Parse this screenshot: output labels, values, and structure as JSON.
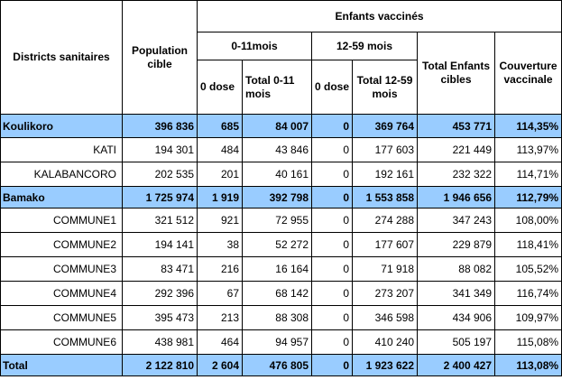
{
  "header": {
    "districts": "Districts sanitaires",
    "population": "Population cible",
    "enfants_vaccines": "Enfants vaccinés",
    "group_0_11": "0-11mois",
    "group_12_59": "12-59 mois",
    "zero_dose_a": "0 dose",
    "total_0_11": "Total 0-11 mois",
    "zero_dose_b": "0 dose",
    "total_12_59": "Total 12-59 mois",
    "total_enfants": "Total Enfants cibles",
    "couverture": "Couverture vaccinale"
  },
  "rows": [
    {
      "name": "Koulikoro",
      "population": "396 836",
      "zero_0_11": "685",
      "total_0_11": "84 007",
      "zero_12_59": "0",
      "total_12_59": "369 764",
      "total_enfants": "453 771",
      "couverture": "114,35%"
    },
    {
      "name": "KATI",
      "population": "194 301",
      "zero_0_11": "484",
      "total_0_11": "43 846",
      "zero_12_59": "0",
      "total_12_59": "177 603",
      "total_enfants": "221 449",
      "couverture": "113,97%"
    },
    {
      "name": "KALABANCORO",
      "population": "202 535",
      "zero_0_11": "201",
      "total_0_11": "40 161",
      "zero_12_59": "0",
      "total_12_59": "192 161",
      "total_enfants": "232 322",
      "couverture": "114,71%"
    },
    {
      "name": "Bamako",
      "population": "1 725 974",
      "zero_0_11": "1 919",
      "total_0_11": "392 798",
      "zero_12_59": "0",
      "total_12_59": "1 553 858",
      "total_enfants": "1 946 656",
      "couverture": "112,79%"
    },
    {
      "name": "COMMUNE1",
      "population": "321 512",
      "zero_0_11": "921",
      "total_0_11": "72 955",
      "zero_12_59": "0",
      "total_12_59": "274 288",
      "total_enfants": "347 243",
      "couverture": "108,00%"
    },
    {
      "name": "COMMUNE2",
      "population": "194 141",
      "zero_0_11": "38",
      "total_0_11": "52 272",
      "zero_12_59": "0",
      "total_12_59": "177 607",
      "total_enfants": "229 879",
      "couverture": "118,41%"
    },
    {
      "name": "COMMUNE3",
      "population": "83 471",
      "zero_0_11": "216",
      "total_0_11": "16 164",
      "zero_12_59": "0",
      "total_12_59": "71 918",
      "total_enfants": "88 082",
      "couverture": "105,52%"
    },
    {
      "name": "COMMUNE4",
      "population": "292 396",
      "zero_0_11": "67",
      "total_0_11": "68 142",
      "zero_12_59": "0",
      "total_12_59": "273 207",
      "total_enfants": "341 349",
      "couverture": "116,74%"
    },
    {
      "name": "COMMUNE5",
      "population": "395 473",
      "zero_0_11": "213",
      "total_0_11": "88 308",
      "zero_12_59": "0",
      "total_12_59": "346 598",
      "total_enfants": "434 906",
      "couverture": "109,97%"
    },
    {
      "name": "COMMUNE6",
      "population": "438 981",
      "zero_0_11": "464",
      "total_0_11": "94 957",
      "zero_12_59": "0",
      "total_12_59": "410 240",
      "total_enfants": "505 197",
      "couverture": "115,08%"
    },
    {
      "name": "Total",
      "population": "2 122 810",
      "zero_0_11": "2 604",
      "total_0_11": "476 805",
      "zero_12_59": "0",
      "total_12_59": "1 923 622",
      "total_enfants": "2 400 427",
      "couverture": "113,08%"
    }
  ],
  "colors": {
    "highlight_row": "#99ccff",
    "border": "#000000"
  }
}
